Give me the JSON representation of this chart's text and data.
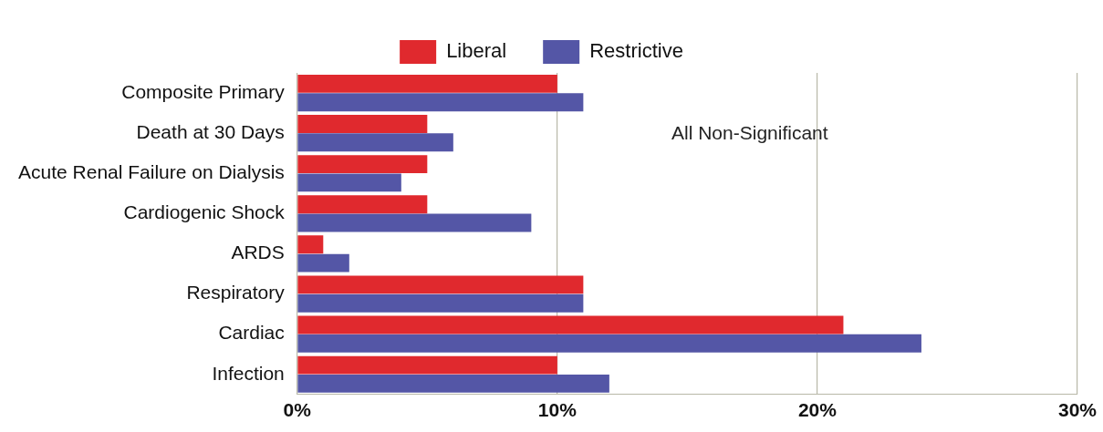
{
  "chart_data": {
    "type": "bar",
    "orientation": "horizontal",
    "categories": [
      "Composite Primary",
      "Death at 30 Days",
      "Acute Renal Failure on Dialysis",
      "Cardiogenic Shock",
      "ARDS",
      "Respiratory",
      "Cardiac",
      "Infection"
    ],
    "series": [
      {
        "name": "Liberal",
        "color": "#e0292e",
        "values": [
          10,
          5,
          5,
          5,
          1,
          11,
          21,
          10
        ]
      },
      {
        "name": "Restrictive",
        "color": "#5456a6",
        "values": [
          11,
          6,
          4,
          9,
          2,
          11,
          24,
          12
        ]
      }
    ],
    "xlim": [
      0,
      30
    ],
    "xticks": [
      {
        "value": 0,
        "label": "0%"
      },
      {
        "value": 10,
        "label": "10%"
      },
      {
        "value": 20,
        "label": "20%"
      },
      {
        "value": 30,
        "label": "30%"
      }
    ],
    "grid": "x",
    "legend": "top",
    "annotations": [
      "All Non-Significant"
    ]
  }
}
